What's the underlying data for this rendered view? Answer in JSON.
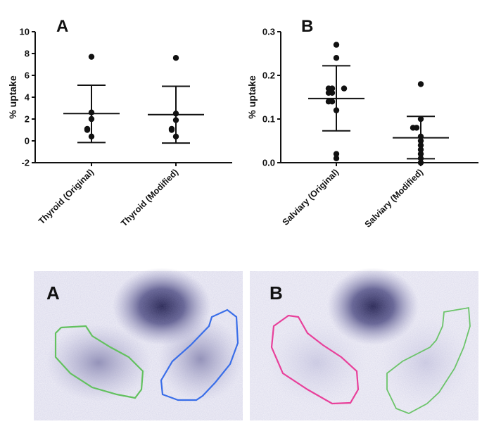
{
  "chart_data": [
    {
      "type": "scatter",
      "panel_label": "A",
      "ylabel": "% uptake",
      "xlabel": "",
      "ylim": [
        -2,
        10
      ],
      "yticks": [
        "-2",
        "0",
        "2",
        "4",
        "6",
        "8",
        "10"
      ],
      "categories": [
        "Thyroid (Original)",
        "Thyroid (Modified)"
      ],
      "series": [
        {
          "category": "Thyroid (Original)",
          "values": [
            7.7,
            2.6,
            2.0,
            1.1,
            1.0,
            0.4
          ],
          "mean": 2.5,
          "sd_upper": 5.1,
          "sd_lower": -0.15
        },
        {
          "category": "Thyroid (Modified)",
          "values": [
            7.6,
            2.5,
            1.9,
            1.1,
            1.0,
            0.4
          ],
          "mean": 2.4,
          "sd_upper": 5.0,
          "sd_lower": -0.2
        }
      ],
      "grid": false
    },
    {
      "type": "scatter",
      "panel_label": "B",
      "ylabel": "% uptake",
      "xlabel": "",
      "ylim": [
        0,
        0.3
      ],
      "yticks": [
        "0.0",
        "0.1",
        "0.2",
        "0.3"
      ],
      "categories": [
        "Salviary (Original)",
        "Salviary (Modified)"
      ],
      "series": [
        {
          "category": "Salviary (Original)",
          "values": [
            0.27,
            0.24,
            0.17,
            0.16,
            0.16,
            0.17,
            0.17,
            0.14,
            0.14,
            0.12,
            0.01,
            0.02
          ],
          "mean": 0.147,
          "sd_upper": 0.222,
          "sd_lower": 0.073
        },
        {
          "category": "Salviary (Modified)",
          "values": [
            0.18,
            0.1,
            0.08,
            0.08,
            0.06,
            0.05,
            0.04,
            0.03,
            0.02,
            0.01,
            0.0
          ],
          "mean": 0.057,
          "sd_upper": 0.106,
          "sd_lower": 0.009
        },
        {
          "category": "",
          "values": []
        }
      ],
      "grid": false
    }
  ],
  "images": [
    {
      "panel_label": "A",
      "roi_colors": [
        "#63c15f",
        "#3a6ee8"
      ]
    },
    {
      "panel_label": "B",
      "roi_colors": [
        "#e8409a",
        "#6cc46a"
      ]
    }
  ],
  "colors": {
    "marker": "#111111",
    "axis": "#111111",
    "scan_bg": "#ecebf5",
    "scan_dark": "#2e2c66"
  }
}
